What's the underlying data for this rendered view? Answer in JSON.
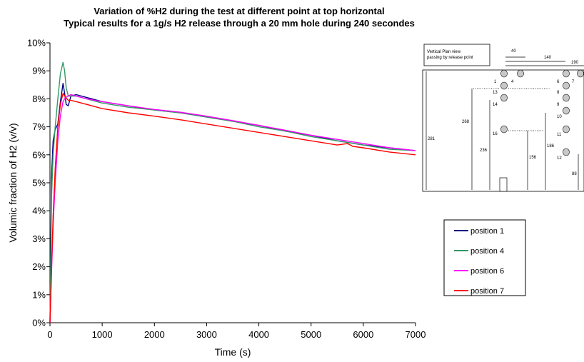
{
  "chart_data": {
    "type": "line",
    "title": "Variation of %H2 during the test at different point at top horizontal",
    "subtitle": "Typical results for a 1g/s H2 release through a 20 mm hole during 240 secondes",
    "xlabel": "Time (s)",
    "ylabel": "Volumic fraction of H2 (v/v)",
    "xlim": [
      0,
      7000
    ],
    "ylim": [
      0,
      10
    ],
    "x_ticks": [
      "0",
      "1000",
      "2000",
      "3000",
      "4000",
      "5000",
      "6000",
      "7000"
    ],
    "y_ticks": [
      "0%",
      "1%",
      "2%",
      "3%",
      "4%",
      "5%",
      "6%",
      "7%",
      "8%",
      "9%",
      "10%"
    ],
    "y_unit": "%",
    "grid": false,
    "legend_position": "right-middle",
    "series": [
      {
        "name": "position 1",
        "color": "#000080",
        "x": [
          0,
          30,
          60,
          100,
          150,
          200,
          250,
          280,
          310,
          350,
          400,
          500,
          700,
          1000,
          1500,
          2000,
          2500,
          3000,
          3500,
          4000,
          4500,
          5000,
          5500,
          6000,
          6500,
          7000
        ],
        "y": [
          0,
          5.2,
          6.5,
          6.9,
          7.1,
          7.9,
          8.55,
          8.2,
          7.8,
          7.75,
          8.1,
          8.15,
          8.05,
          7.9,
          7.75,
          7.6,
          7.5,
          7.35,
          7.2,
          7.05,
          6.85,
          6.7,
          6.5,
          6.35,
          6.25,
          6.15
        ]
      },
      {
        "name": "position 4",
        "color": "#339966",
        "x": [
          0,
          30,
          60,
          100,
          150,
          200,
          250,
          280,
          310,
          350,
          400,
          500,
          700,
          1000,
          1500,
          2000,
          2500,
          3000,
          3500,
          4000,
          4500,
          5000,
          5500,
          6000,
          6500,
          7000
        ],
        "y": [
          0,
          4.5,
          6.0,
          7.0,
          8.0,
          8.9,
          9.3,
          9.0,
          8.4,
          8.1,
          8.1,
          8.1,
          8.0,
          7.85,
          7.7,
          7.6,
          7.5,
          7.35,
          7.2,
          7.0,
          6.85,
          6.65,
          6.5,
          6.35,
          6.2,
          6.15
        ]
      },
      {
        "name": "position 6",
        "color": "#FF00FF",
        "x": [
          0,
          30,
          60,
          100,
          150,
          200,
          250,
          300,
          350,
          400,
          500,
          700,
          1000,
          1500,
          2000,
          2500,
          3000,
          3500,
          4000,
          4500,
          5000,
          5500,
          6000,
          6500,
          7000
        ],
        "y": [
          0,
          1.8,
          3.5,
          5.0,
          6.5,
          7.4,
          7.9,
          8.05,
          8.1,
          8.15,
          8.1,
          8.0,
          7.9,
          7.75,
          7.62,
          7.52,
          7.38,
          7.22,
          7.05,
          6.88,
          6.7,
          6.55,
          6.4,
          6.25,
          6.15
        ]
      },
      {
        "name": "position 7",
        "color": "#FF0000",
        "x": [
          0,
          30,
          60,
          100,
          150,
          200,
          250,
          300,
          350,
          400,
          500,
          700,
          1000,
          1500,
          2000,
          2500,
          3000,
          3500,
          4000,
          4500,
          5000,
          5500,
          5700,
          5800,
          6000,
          6500,
          7000
        ],
        "y": [
          0,
          2.0,
          3.8,
          5.5,
          7.0,
          7.8,
          8.2,
          8.05,
          7.95,
          7.95,
          7.9,
          7.8,
          7.65,
          7.5,
          7.38,
          7.25,
          7.1,
          6.95,
          6.8,
          6.65,
          6.5,
          6.35,
          6.4,
          6.3,
          6.25,
          6.1,
          6.0
        ]
      }
    ]
  },
  "inset": {
    "caption_line1": "Vertical Plan view",
    "caption_line2": "passing by release point",
    "dims_top": [
      "40",
      "140",
      "190"
    ],
    "dims_left": [
      "268",
      "281",
      "236"
    ],
    "dims_mid": [
      "156",
      "186",
      "88"
    ],
    "point_numbers": [
      "1",
      "4",
      "6",
      "7",
      "13",
      "14",
      "16",
      "8",
      "9",
      "10",
      "11",
      "12"
    ]
  }
}
